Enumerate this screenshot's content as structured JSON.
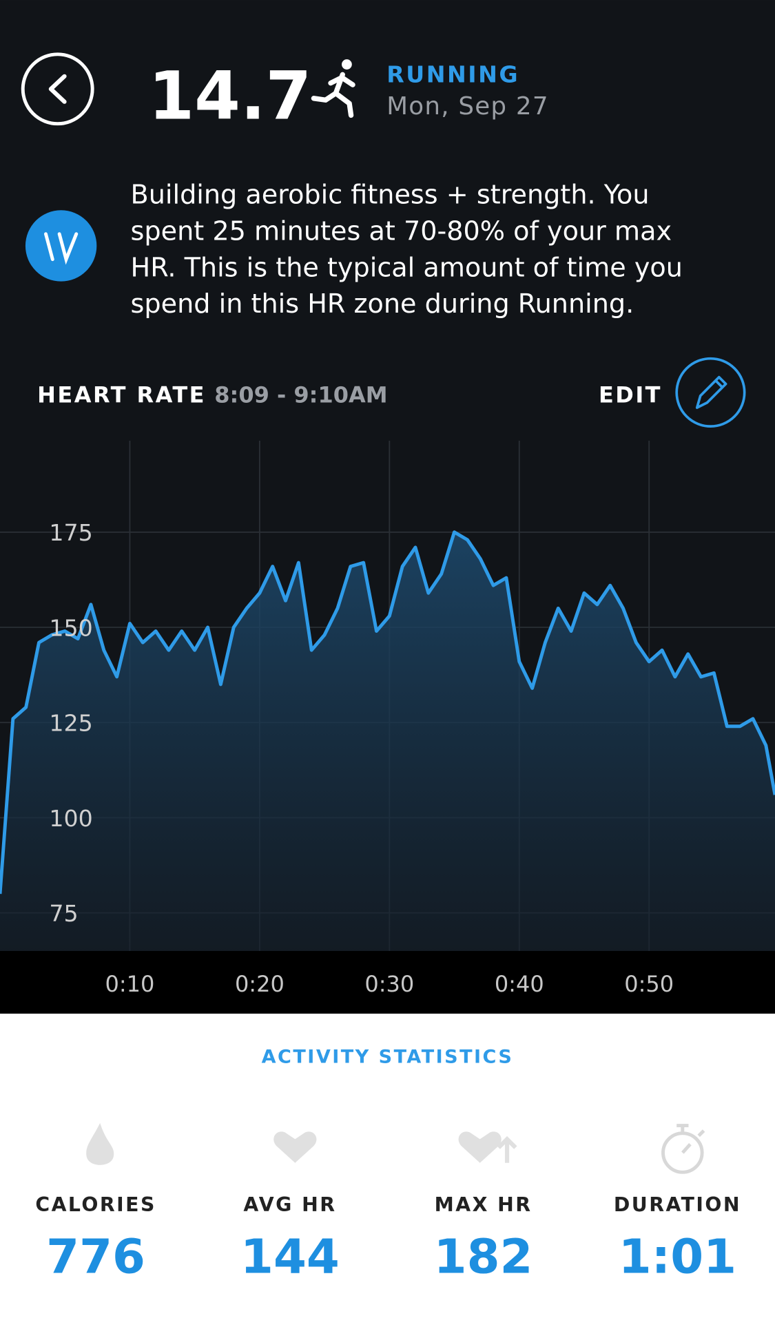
{
  "header": {
    "value": "14.7",
    "activity": "RUNNING",
    "date": "Mon, Sep 27"
  },
  "insight": {
    "lines": [
      "Building aerobic fitness + strength. You",
      "spent 25 minutes at 70-80% of your max",
      "HR. This is the typical amount of time you",
      "spend in this HR zone during Running."
    ]
  },
  "chart_header": {
    "edit": "EDIT"
  },
  "chart_data": {
    "type": "line",
    "title": "HEART RATE",
    "subtitle": "8:09 - 9:10AM",
    "x": [
      0,
      1,
      2,
      3,
      4,
      5,
      6,
      7,
      8,
      9,
      10,
      11,
      12,
      13,
      14,
      15,
      16,
      17,
      18,
      19,
      20,
      21,
      22,
      23,
      24,
      25,
      26,
      27,
      28,
      29,
      30,
      31,
      32,
      33,
      34,
      35,
      36,
      37,
      38,
      39,
      40,
      41,
      42,
      43,
      44,
      45,
      46,
      47,
      48,
      49,
      50,
      51,
      52,
      53,
      54,
      55,
      56,
      57,
      58,
      59,
      59.7
    ],
    "series": [
      {
        "color": "#2f9be8",
        "values": [
          80,
          126,
          129,
          146,
          148,
          149,
          147,
          156,
          144,
          137,
          151,
          146,
          149,
          144,
          149,
          144,
          150,
          135,
          150,
          155,
          159,
          166,
          157,
          167,
          144,
          148,
          155,
          166,
          167,
          149,
          153,
          166,
          171,
          159,
          164,
          175,
          173,
          168,
          161,
          163,
          141,
          134,
          146,
          155,
          149,
          159,
          156,
          161,
          155,
          146,
          141,
          144,
          137,
          143,
          137,
          138,
          124,
          124,
          126,
          119,
          106
        ]
      }
    ],
    "xlim": [
      0,
      59.7
    ],
    "ylim": [
      65,
      199
    ],
    "xticks": [
      {
        "value": 10,
        "label": "0:10"
      },
      {
        "value": 20,
        "label": "0:20"
      },
      {
        "value": 30,
        "label": "0:30"
      },
      {
        "value": 40,
        "label": "0:40"
      },
      {
        "value": 50,
        "label": "0:50"
      }
    ],
    "yticks": [
      75,
      100,
      125,
      150,
      175
    ],
    "grid": true
  },
  "stats": {
    "title": "ACTIVITY STATISTICS",
    "items": [
      {
        "label": "CALORIES",
        "value": 776
      },
      {
        "label": "AVG HR",
        "value": 144
      },
      {
        "label": "MAX HR",
        "value": 182
      },
      {
        "label": "DURATION",
        "value": "1:01"
      }
    ]
  }
}
